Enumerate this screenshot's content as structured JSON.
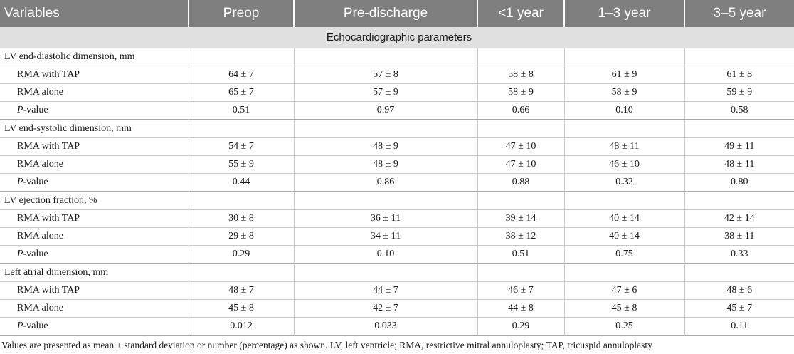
{
  "table": {
    "headers": [
      "Variables",
      "Preop",
      "Pre-discharge",
      "<1 year",
      "1–3 year",
      "3–5 year"
    ],
    "section_title": "Echocardiographic parameters",
    "groups": [
      {
        "label": "LV end-diastolic dimension, mm",
        "rows": [
          {
            "label": "RMA with TAP",
            "values": [
              "64 ± 7",
              "57 ± 8",
              "58 ± 8",
              "61 ± 9",
              "61 ± 8"
            ]
          },
          {
            "label": "RMA alone",
            "values": [
              "65 ± 7",
              "57 ± 9",
              "58 ± 9",
              "58 ± 9",
              "59 ± 9"
            ]
          },
          {
            "label_italic": "P",
            "label_rest": "-value",
            "values": [
              "0.51",
              "0.97",
              "0.66",
              "0.10",
              "0.58"
            ]
          }
        ]
      },
      {
        "label": "LV end-systolic dimension, mm",
        "rows": [
          {
            "label": "RMA with TAP",
            "values": [
              "54 ± 7",
              "48 ± 9",
              "47 ± 10",
              "48 ± 11",
              "49 ± 11"
            ]
          },
          {
            "label": "RMA alone",
            "values": [
              "55 ± 9",
              "48 ± 9",
              "47 ± 10",
              "46 ± 10",
              "48 ± 11"
            ]
          },
          {
            "label_italic": "P",
            "label_rest": "-value",
            "values": [
              "0.44",
              "0.86",
              "0.88",
              "0.32",
              "0.80"
            ]
          }
        ]
      },
      {
        "label": "LV ejection fraction, %",
        "rows": [
          {
            "label": "RMA with TAP",
            "values": [
              "30 ± 8",
              "36 ± 11",
              "39 ± 14",
              "40 ± 14",
              "42 ± 14"
            ]
          },
          {
            "label": "RMA alone",
            "values": [
              "29 ± 8",
              "34 ± 11",
              "38 ± 12",
              "40 ± 14",
              "38 ± 11"
            ]
          },
          {
            "label_italic": "P",
            "label_rest": "-value",
            "values": [
              "0.29",
              "0.10",
              "0.51",
              "0.75",
              "0.33"
            ]
          }
        ]
      },
      {
        "label": "Left atrial dimension, mm",
        "rows": [
          {
            "label": "RMA with TAP",
            "values": [
              "48 ± 7",
              "44 ± 7",
              "46 ± 7",
              "47 ± 6",
              "48 ± 6"
            ]
          },
          {
            "label": "RMA alone",
            "values": [
              "45 ± 8",
              "42 ± 7",
              "44 ± 8",
              "45 ± 8",
              "45 ± 7"
            ]
          },
          {
            "label_italic": "P",
            "label_rest": "-value",
            "values": [
              "0.012",
              "0.033",
              "0.29",
              "0.25",
              "0.11"
            ]
          }
        ]
      }
    ]
  },
  "footnote": "Values are presented as mean ± standard deviation or number (percentage) as shown. LV, left ventricle; RMA, restrictive mitral annuloplasty; TAP, tricuspid annuloplasty"
}
